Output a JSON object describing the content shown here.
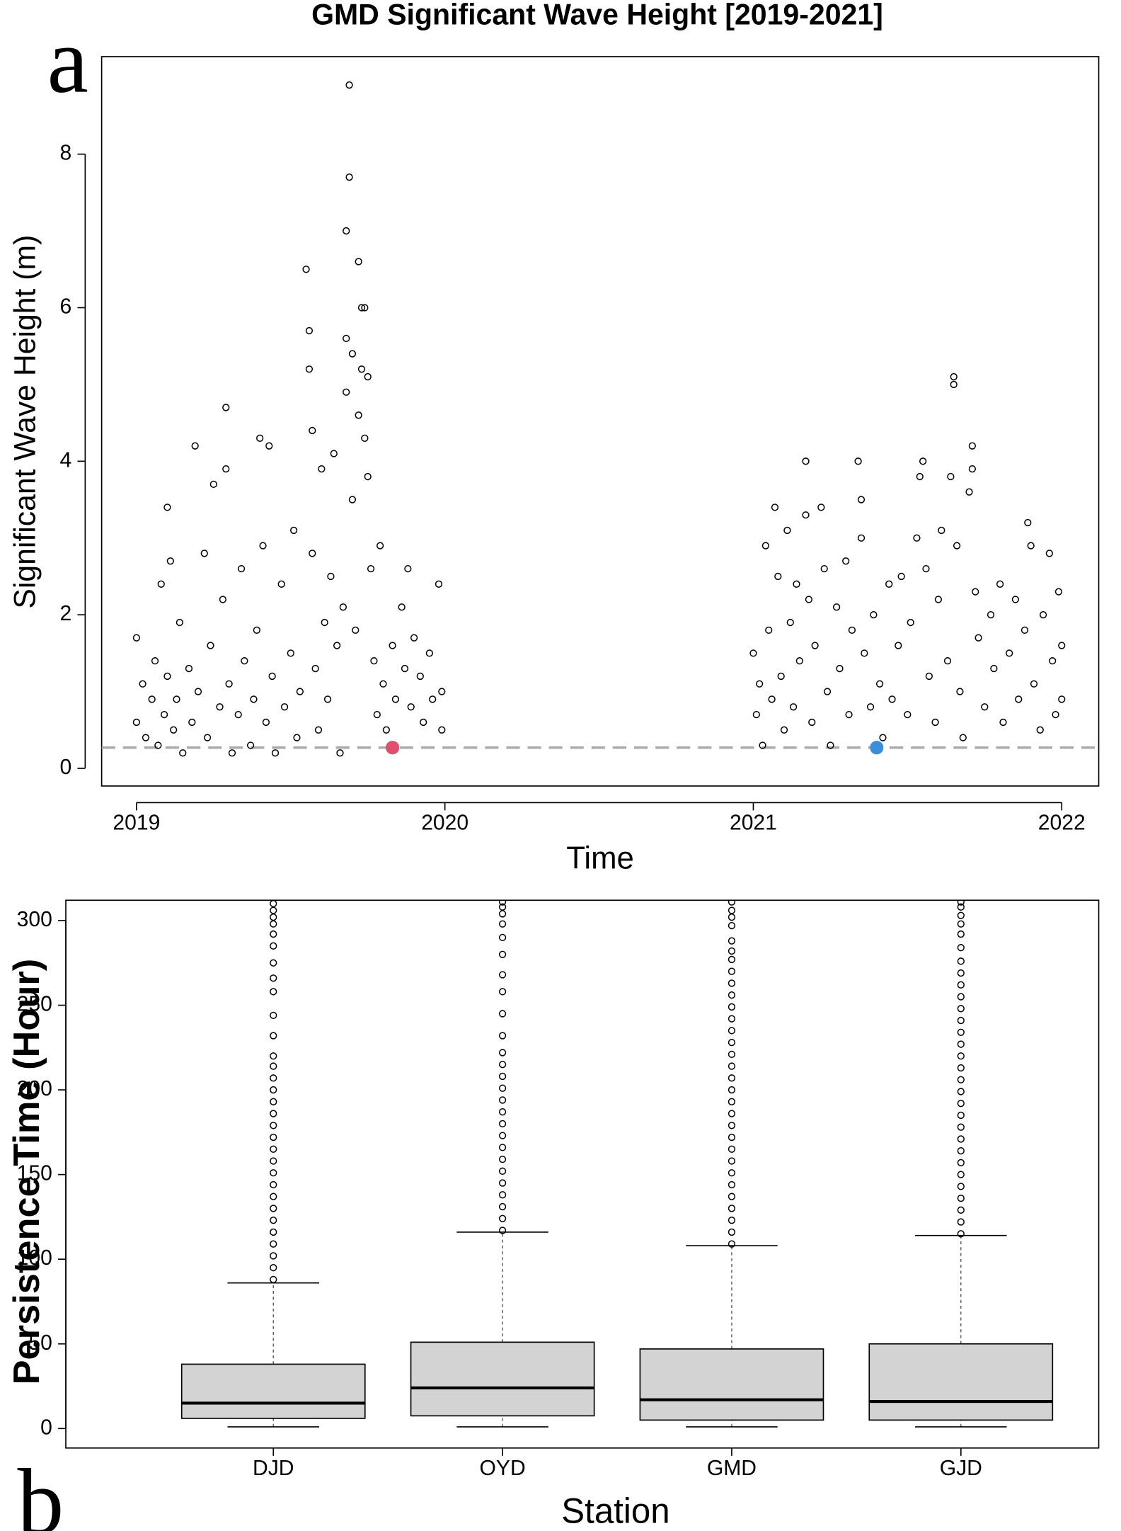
{
  "chart_data": [
    {
      "type": "scatter",
      "title": "GMD Significant Wave Height [2019-2021]",
      "annotation": "a",
      "xlabel": "Time",
      "ylabel": "Significant Wave Height (m)",
      "xlim": [
        2018.887,
        2022.12
      ],
      "xticks": [
        2019,
        2020,
        2021,
        2022
      ],
      "ylim": [
        -0.23,
        9.27
      ],
      "yticks": [
        0,
        2,
        4,
        6,
        8
      ],
      "hline": {
        "value": 0.27,
        "color": "#aaaaaa",
        "style": "dashed"
      },
      "series": [
        {
          "color": "#000000",
          "marker": "open",
          "x": [
            2019.0,
            2019.0,
            2019.02,
            2019.03,
            2019.05,
            2019.06,
            2019.07,
            2019.08,
            2019.09,
            2019.1,
            2019.1,
            2019.11,
            2019.12,
            2019.13,
            2019.14,
            2019.15,
            2019.17,
            2019.18,
            2019.19,
            2019.2,
            2019.22,
            2019.23,
            2019.24,
            2019.25,
            2019.27,
            2019.28,
            2019.29,
            2019.29,
            2019.3,
            2019.31,
            2019.33,
            2019.34,
            2019.35,
            2019.37,
            2019.38,
            2019.39,
            2019.4,
            2019.41,
            2019.42,
            2019.43,
            2019.44,
            2019.45,
            2019.47,
            2019.48,
            2019.5,
            2019.51,
            2019.52,
            2019.53,
            2019.55,
            2019.56,
            2019.56,
            2019.57,
            2019.57,
            2019.58,
            2019.59,
            2019.6,
            2019.61,
            2019.62,
            2019.63,
            2019.64,
            2019.65,
            2019.66,
            2019.67,
            2019.68,
            2019.68,
            2019.68,
            2019.69,
            2019.69,
            2019.7,
            2019.7,
            2019.71,
            2019.72,
            2019.72,
            2019.73,
            2019.73,
            2019.74,
            2019.74,
            2019.75,
            2019.75,
            2019.76,
            2019.77,
            2019.78,
            2019.79,
            2019.8,
            2019.81,
            2019.83,
            2019.84,
            2019.86,
            2019.87,
            2019.88,
            2019.89,
            2019.9,
            2019.92,
            2019.93,
            2019.95,
            2019.96,
            2019.98,
            2019.99,
            2019.99,
            2021.0,
            2021.01,
            2021.02,
            2021.03,
            2021.04,
            2021.05,
            2021.06,
            2021.07,
            2021.08,
            2021.09,
            2021.1,
            2021.11,
            2021.12,
            2021.13,
            2021.14,
            2021.15,
            2021.17,
            2021.17,
            2021.18,
            2021.19,
            2021.2,
            2021.22,
            2021.23,
            2021.24,
            2021.25,
            2021.27,
            2021.28,
            2021.3,
            2021.31,
            2021.32,
            2021.34,
            2021.35,
            2021.35,
            2021.36,
            2021.38,
            2021.39,
            2021.41,
            2021.42,
            2021.44,
            2021.45,
            2021.47,
            2021.48,
            2021.5,
            2021.51,
            2021.53,
            2021.54,
            2021.55,
            2021.56,
            2021.57,
            2021.59,
            2021.6,
            2021.61,
            2021.63,
            2021.64,
            2021.65,
            2021.65,
            2021.66,
            2021.67,
            2021.68,
            2021.7,
            2021.71,
            2021.71,
            2021.72,
            2021.73,
            2021.75,
            2021.77,
            2021.78,
            2021.8,
            2021.81,
            2021.83,
            2021.85,
            2021.86,
            2021.88,
            2021.89,
            2021.9,
            2021.91,
            2021.93,
            2021.94,
            2021.96,
            2021.97,
            2021.98,
            2021.99,
            2022.0,
            2022.0
          ],
          "values": [
            1.7,
            0.6,
            1.1,
            0.4,
            0.9,
            1.4,
            0.3,
            2.4,
            0.7,
            1.2,
            3.4,
            2.7,
            0.5,
            0.9,
            1.9,
            0.2,
            1.3,
            0.6,
            4.2,
            1.0,
            2.8,
            0.4,
            1.6,
            3.7,
            0.8,
            2.2,
            4.7,
            3.9,
            1.1,
            0.2,
            0.7,
            2.6,
            1.4,
            0.3,
            0.9,
            1.8,
            4.3,
            2.9,
            0.6,
            4.2,
            1.2,
            0.2,
            2.4,
            0.8,
            1.5,
            3.1,
            0.4,
            1.0,
            6.5,
            5.7,
            5.2,
            4.4,
            2.8,
            1.3,
            0.5,
            3.9,
            1.9,
            0.9,
            2.5,
            4.1,
            1.6,
            0.2,
            2.1,
            7.0,
            5.6,
            4.9,
            8.9,
            7.7,
            5.4,
            3.5,
            1.8,
            6.6,
            4.6,
            6.0,
            5.2,
            6.0,
            4.3,
            3.8,
            5.1,
            2.6,
            1.4,
            0.7,
            2.9,
            1.1,
            0.5,
            1.6,
            0.9,
            2.1,
            1.3,
            2.6,
            0.8,
            1.7,
            1.2,
            0.6,
            1.5,
            0.9,
            2.4,
            1.0,
            0.5,
            1.5,
            0.7,
            1.1,
            0.3,
            2.9,
            1.8,
            0.9,
            3.4,
            2.5,
            1.2,
            0.5,
            3.1,
            1.9,
            0.8,
            2.4,
            1.4,
            4.0,
            3.3,
            2.2,
            0.6,
            1.6,
            3.4,
            2.6,
            1.0,
            0.3,
            2.1,
            1.3,
            2.7,
            0.7,
            1.8,
            4.0,
            3.5,
            3.0,
            1.5,
            0.8,
            2.0,
            1.1,
            0.4,
            2.4,
            0.9,
            1.6,
            2.5,
            0.7,
            1.9,
            3.0,
            3.8,
            4.0,
            2.6,
            1.2,
            0.6,
            2.2,
            3.1,
            1.4,
            3.8,
            5.1,
            5.0,
            2.9,
            1.0,
            0.4,
            3.6,
            4.2,
            3.9,
            2.3,
            1.7,
            0.8,
            2.0,
            1.3,
            2.4,
            0.6,
            1.5,
            2.2,
            0.9,
            1.8,
            3.2,
            2.9,
            1.1,
            0.5,
            2.0,
            2.8,
            1.4,
            0.7,
            2.3,
            1.6,
            0.9
          ]
        },
        {
          "color": "#e0506e",
          "marker": "filled",
          "x": [
            2019.83
          ],
          "values": [
            0.27
          ]
        },
        {
          "color": "#3a8fd8",
          "marker": "filled",
          "x": [
            2021.4
          ],
          "values": [
            0.27
          ]
        }
      ]
    },
    {
      "type": "box",
      "annotation": "b",
      "xlabel": "Station",
      "ylabel": "Persistence Time (Hour)",
      "categories": [
        "DJD",
        "OYD",
        "GMD",
        "GJD"
      ],
      "color": "#d3d3d3",
      "ylim": [
        -11.5,
        312
      ],
      "yticks": [
        0,
        50,
        100,
        150,
        200,
        250,
        300
      ],
      "boxes": [
        {
          "whislo": 1,
          "q1": 6,
          "median": 15,
          "q3": 38,
          "whishi": 86,
          "outliers": [
            88,
            95,
            102,
            109,
            116,
            123,
            130,
            137,
            144,
            151,
            158,
            165,
            172,
            179,
            186,
            193,
            200,
            207,
            214,
            220,
            232,
            244,
            258,
            266,
            275,
            285,
            292,
            298,
            302,
            306,
            310
          ]
        },
        {
          "whislo": 1,
          "q1": 7.5,
          "median": 24,
          "q3": 51,
          "whishi": 116,
          "outliers": [
            117,
            124,
            131,
            138,
            145,
            152,
            159,
            166,
            173,
            180,
            187,
            194,
            201,
            208,
            215,
            222,
            232,
            245,
            258,
            268,
            280,
            290,
            298,
            304,
            308,
            311
          ]
        },
        {
          "whislo": 1,
          "q1": 5,
          "median": 17,
          "q3": 47,
          "whishi": 108,
          "outliers": [
            109,
            116,
            123,
            130,
            137,
            144,
            151,
            158,
            165,
            172,
            179,
            186,
            193,
            200,
            207,
            214,
            221,
            228,
            235,
            242,
            249,
            256,
            263,
            270,
            277,
            282,
            288,
            297,
            302,
            306,
            311
          ]
        },
        {
          "whislo": 1,
          "q1": 5,
          "median": 16,
          "q3": 50,
          "whishi": 114,
          "outliers": [
            115,
            122,
            129,
            136,
            143,
            150,
            157,
            164,
            171,
            178,
            185,
            192,
            199,
            206,
            213,
            220,
            227,
            234,
            241,
            248,
            255,
            262,
            269,
            276,
            284,
            292,
            298,
            303,
            308,
            311
          ]
        }
      ]
    }
  ]
}
